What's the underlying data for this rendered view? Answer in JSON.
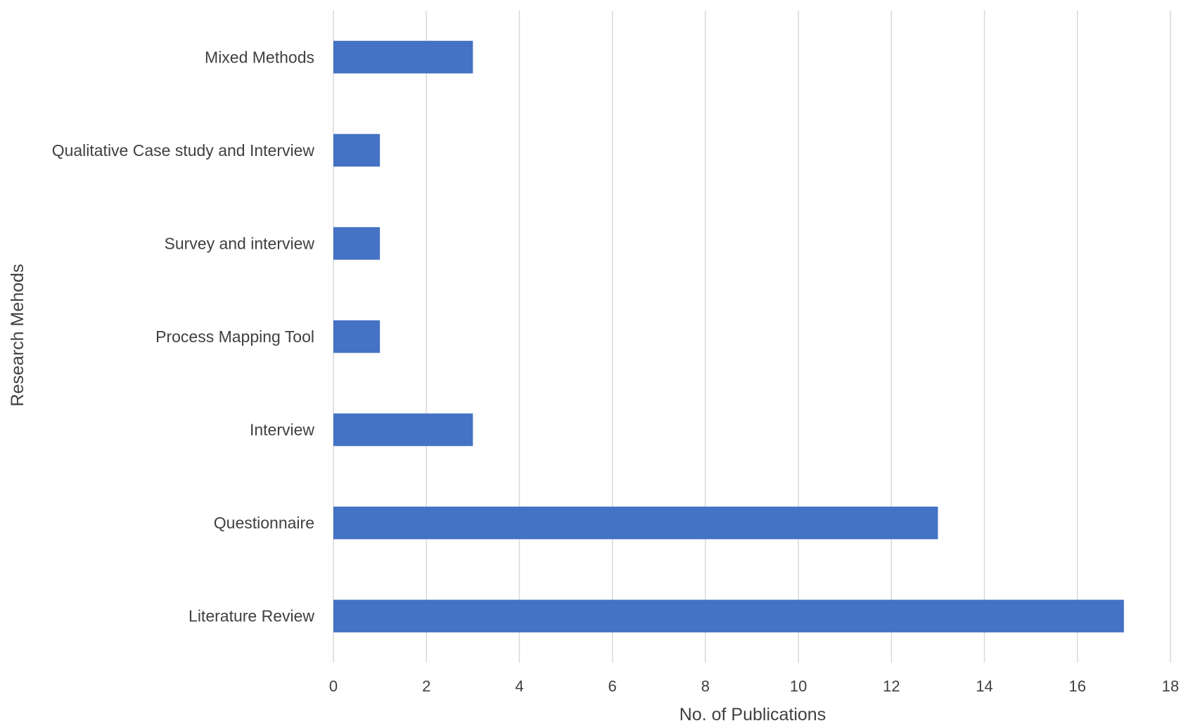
{
  "chart_data": {
    "type": "bar",
    "orientation": "horizontal",
    "categories": [
      "Mixed Methods",
      "Qualitative Case study and Interview",
      "Survey and interview",
      "Process Mapping Tool",
      "Interview",
      "Questionnaire",
      "Literature Review"
    ],
    "values": [
      3,
      1,
      1,
      1,
      3,
      13,
      17
    ],
    "xlabel": "No. of Publications",
    "ylabel": "Research Mehods",
    "xlim": [
      0,
      18
    ],
    "xticks": [
      0,
      2,
      4,
      6,
      8,
      10,
      12,
      14,
      16,
      18
    ],
    "grid": true,
    "bar_color": "#4472C4",
    "grid_color": "#D9D9D9"
  }
}
